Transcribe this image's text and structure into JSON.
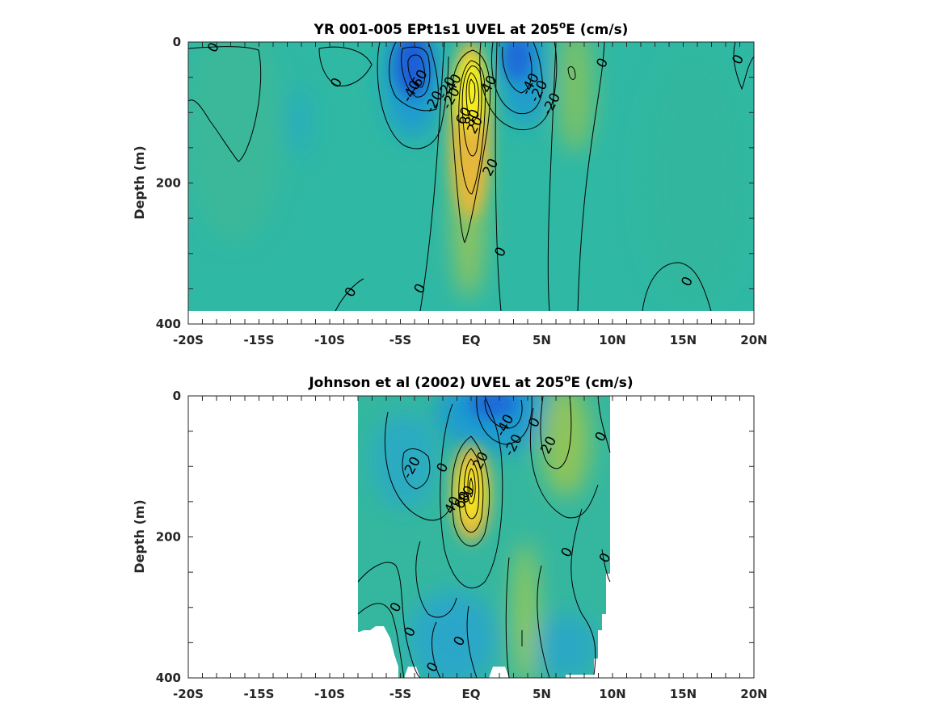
{
  "chart_data": [
    {
      "type": "heatmap",
      "title": "YR 001-005 EPt1s1 UVEL at 205",
      "title_superscript": "o",
      "title_suffix": "E (cm/s)",
      "xlabel": "",
      "ylabel": "Depth (m)",
      "x_ticks": [
        "-20S",
        "-15S",
        "-10S",
        "-5S",
        "EQ",
        "5N",
        "10N",
        "15N",
        "20N"
      ],
      "x_range": [
        -20,
        20
      ],
      "y_ticks": [
        "0",
        "200",
        "400"
      ],
      "y_range": [
        0,
        400
      ],
      "y_reversed": true,
      "data_extent": {
        "lat": [
          -20,
          20
        ],
        "depth_max": 380
      },
      "colors": {
        "background": "#2fb8a4",
        "strong_westward": "#1f5fd6",
        "westward": "#1e9bd0",
        "eastward": "#e5b83a",
        "core": "#f6f01e"
      },
      "cores": [
        {
          "lat": 0,
          "depth": 85,
          "value": 80,
          "sign": "east"
        },
        {
          "lat": -4.5,
          "depth": 30,
          "value": -60,
          "sign": "west"
        },
        {
          "lat": 3.5,
          "depth": 30,
          "value": -40,
          "sign": "west"
        },
        {
          "lat": 7,
          "depth": 60,
          "value": 10,
          "sign": "east"
        }
      ],
      "contour_labels": [
        {
          "text": "0",
          "lat": -18.2,
          "depth": 8
        },
        {
          "text": "0",
          "lat": -9.5,
          "depth": 58
        },
        {
          "text": "-60",
          "lat": -3.7,
          "depth": 55
        },
        {
          "text": "-40",
          "lat": -4.2,
          "depth": 70
        },
        {
          "text": "-20",
          "lat": -2.6,
          "depth": 85
        },
        {
          "text": "-20",
          "lat": -1.7,
          "depth": 65
        },
        {
          "text": "-20",
          "lat": -1.4,
          "depth": 80
        },
        {
          "text": "40",
          "lat": -1.2,
          "depth": 58
        },
        {
          "text": "40",
          "lat": 1.3,
          "depth": 60
        },
        {
          "text": "60",
          "lat": -0.5,
          "depth": 105
        },
        {
          "text": "80",
          "lat": 0.1,
          "depth": 108
        },
        {
          "text": "20",
          "lat": 0.3,
          "depth": 118
        },
        {
          "text": "20",
          "lat": 1.4,
          "depth": 178
        },
        {
          "text": "-40",
          "lat": 4.2,
          "depth": 60
        },
        {
          "text": "-20",
          "lat": 4.8,
          "depth": 70
        },
        {
          "text": "-20",
          "lat": 5.7,
          "depth": 88
        },
        {
          "text": "0",
          "lat": 9.3,
          "depth": 30
        },
        {
          "text": "0",
          "lat": 18.9,
          "depth": 25
        },
        {
          "text": "0",
          "lat": 2.1,
          "depth": 298
        },
        {
          "text": "0",
          "lat": -3.6,
          "depth": 350
        },
        {
          "text": "0",
          "lat": -8.5,
          "depth": 355
        },
        {
          "text": "0",
          "lat": 15.3,
          "depth": 340
        }
      ]
    },
    {
      "type": "heatmap",
      "title": "Johnson et al (2002) UVEL at 205",
      "title_superscript": "o",
      "title_suffix": "E (cm/s)",
      "xlabel": "",
      "ylabel": "Depth (m)",
      "x_ticks": [
        "-20S",
        "-15S",
        "-10S",
        "-5S",
        "EQ",
        "5N",
        "10N",
        "15N",
        "20N"
      ],
      "x_range": [
        -20,
        20
      ],
      "y_ticks": [
        "0",
        "200",
        "400"
      ],
      "y_range": [
        0,
        400
      ],
      "y_reversed": true,
      "data_extent": {
        "lat": [
          -8,
          9.8
        ],
        "depth_max": 400
      },
      "colors": {
        "background": "#35b79f",
        "strong_westward": "#1f6ad8",
        "westward": "#1e9bd0",
        "eastward": "#e5b83a",
        "core": "#f6e61e"
      },
      "cores": [
        {
          "lat": 0,
          "depth": 140,
          "value": 80,
          "sign": "east"
        },
        {
          "lat": 1.5,
          "depth": 25,
          "value": -40,
          "sign": "west"
        },
        {
          "lat": -2.5,
          "depth": 60,
          "value": -20,
          "sign": "west"
        },
        {
          "lat": 7,
          "depth": 40,
          "value": 20,
          "sign": "east"
        }
      ],
      "contour_labels": [
        {
          "text": "-40",
          "lat": 2.4,
          "depth": 42
        },
        {
          "text": "-20",
          "lat": 3.0,
          "depth": 70
        },
        {
          "text": "0",
          "lat": 4.5,
          "depth": 38
        },
        {
          "text": "20",
          "lat": 5.5,
          "depth": 70
        },
        {
          "text": "0",
          "lat": 9.2,
          "depth": 58
        },
        {
          "text": "-20",
          "lat": -4.2,
          "depth": 102
        },
        {
          "text": "0",
          "lat": -2.0,
          "depth": 102
        },
        {
          "text": "40",
          "lat": -1.3,
          "depth": 155
        },
        {
          "text": "60",
          "lat": -0.6,
          "depth": 148
        },
        {
          "text": "80",
          "lat": -0.3,
          "depth": 140
        },
        {
          "text": "20",
          "lat": 0.7,
          "depth": 92
        },
        {
          "text": "0",
          "lat": 6.8,
          "depth": 222
        },
        {
          "text": "0",
          "lat": 9.5,
          "depth": 230
        },
        {
          "text": "0",
          "lat": -5.3,
          "depth": 300
        },
        {
          "text": "0",
          "lat": -4.3,
          "depth": 335
        },
        {
          "text": "0",
          "lat": -0.8,
          "depth": 348
        },
        {
          "text": "0",
          "lat": -2.7,
          "depth": 385
        }
      ]
    }
  ]
}
